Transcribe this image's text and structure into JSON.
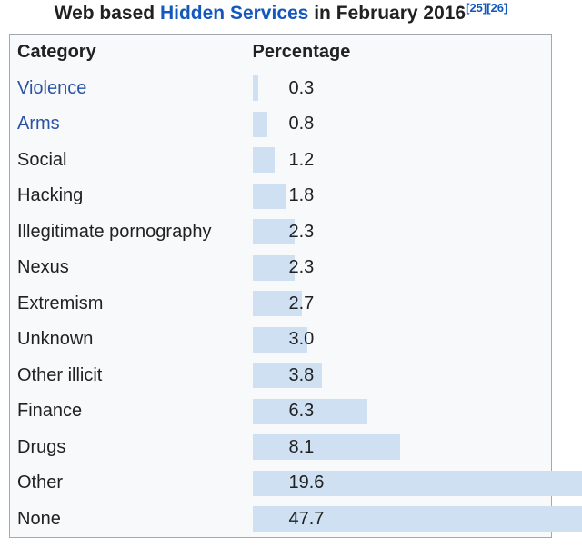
{
  "title": {
    "prefix": "Web based ",
    "link": "Hidden Services",
    "suffix": " in February 2016",
    "refs": [
      "[25]",
      "[26]"
    ]
  },
  "table": {
    "headers": {
      "category": "Category",
      "percentage": "Percentage"
    },
    "rows": [
      {
        "label": "Violence",
        "value": 0.3,
        "value_text": "0.3",
        "is_link": true
      },
      {
        "label": "Arms",
        "value": 0.8,
        "value_text": "0.8",
        "is_link": true
      },
      {
        "label": "Social",
        "value": 1.2,
        "value_text": "1.2",
        "is_link": false
      },
      {
        "label": "Hacking",
        "value": 1.8,
        "value_text": "1.8",
        "is_link": false
      },
      {
        "label": "Illegitimate pornography",
        "value": 2.3,
        "value_text": "2.3",
        "is_link": false
      },
      {
        "label": "Nexus",
        "value": 2.3,
        "value_text": "2.3",
        "is_link": false
      },
      {
        "label": "Extremism",
        "value": 2.7,
        "value_text": "2.7",
        "is_link": false
      },
      {
        "label": "Unknown",
        "value": 3.0,
        "value_text": "3.0",
        "is_link": false
      },
      {
        "label": "Other illicit",
        "value": 3.8,
        "value_text": "3.8",
        "is_link": false
      },
      {
        "label": "Finance",
        "value": 6.3,
        "value_text": "6.3",
        "is_link": false
      },
      {
        "label": "Drugs",
        "value": 8.1,
        "value_text": "8.1",
        "is_link": false
      },
      {
        "label": "Other",
        "value": 19.6,
        "value_text": "19.6",
        "is_link": false
      },
      {
        "label": "None",
        "value": 47.7,
        "value_text": "47.7",
        "is_link": false
      }
    ]
  },
  "chart_data": {
    "type": "bar",
    "orientation": "horizontal",
    "title": "Web based Hidden Services in February 2016",
    "categories": [
      "Violence",
      "Arms",
      "Social",
      "Hacking",
      "Illegitimate pornography",
      "Nexus",
      "Extremism",
      "Unknown",
      "Other illicit",
      "Finance",
      "Drugs",
      "Other",
      "None"
    ],
    "values": [
      0.3,
      0.8,
      1.2,
      1.8,
      2.3,
      2.3,
      2.7,
      3.0,
      3.8,
      6.3,
      8.1,
      19.6,
      47.7
    ],
    "xlabel": "Category",
    "ylabel": "Percentage",
    "xlim": [
      0,
      50
    ],
    "grid": false,
    "legend": false,
    "bars_clipped_at_right_edge": [
      "Other",
      "None"
    ]
  },
  "colors": {
    "bar_fill": "#cfe0f3",
    "table_border": "#a2a9b1",
    "table_background": "#f8f9fa",
    "text": "#202122",
    "title_link": "#1458bd",
    "row_link": "#2a53a8"
  }
}
